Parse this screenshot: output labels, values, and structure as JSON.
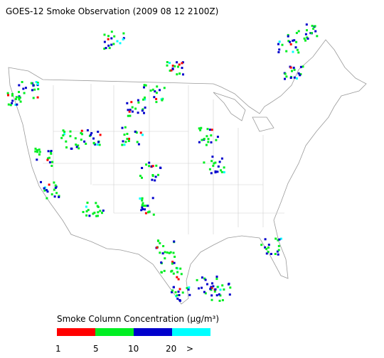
{
  "title": "GOES-12 Smoke Observation (2009 08 12  2100Z)",
  "legend": {
    "title": "Smoke Column Concentration (μg/m³)",
    "colors": [
      "#ff0000",
      "#00ee22",
      "#0000cc",
      "#00ffff"
    ],
    "labels": [
      "1",
      "5",
      "10",
      "20",
      ">"
    ]
  }
}
